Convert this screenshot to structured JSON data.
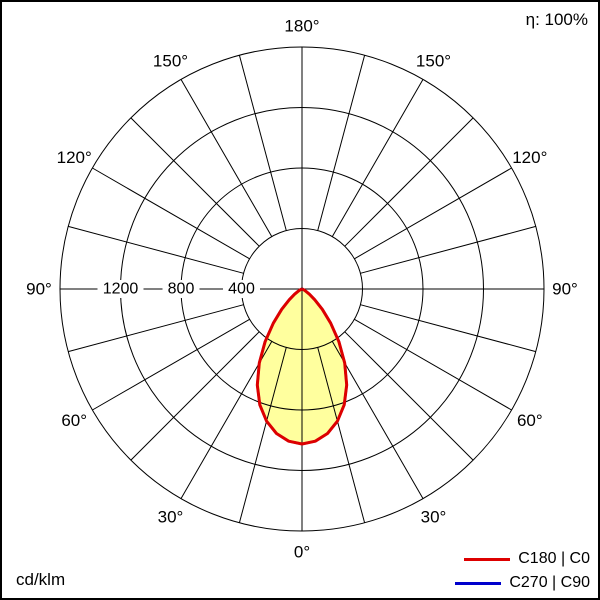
{
  "header": {
    "efficiency": "η: 100%"
  },
  "footer": {
    "unit_label": "cd/klm"
  },
  "legend": [
    {
      "label": "C180 | C0",
      "color": "#dd0000"
    },
    {
      "label": "C270 | C90",
      "color": "#0000cc"
    }
  ],
  "chart_data": {
    "type": "line",
    "subtype": "polar-luminous-intensity-distribution",
    "title": "",
    "units": "cd/klm",
    "efficiency": "η: 100%",
    "scale_max": 1600,
    "rings": [
      400,
      800,
      1200,
      1600
    ],
    "labeled_rings": [
      400,
      800,
      1200
    ],
    "spoke_step_deg": 15,
    "angle_label_step_deg": 30,
    "angle_labels": [
      "0°",
      "30°",
      "60°",
      "90°",
      "120°",
      "150°",
      "180°"
    ],
    "grid_color": "#000000",
    "fill_color": "#ffff9e",
    "legend_position": "bottom-right",
    "series": [
      {
        "name": "C270 | C90",
        "color": "#0000cc",
        "width": 2.5,
        "angles_deg": [
          0,
          5,
          10,
          15,
          20,
          25,
          30,
          35,
          40,
          45,
          50,
          55,
          60,
          65,
          70,
          75,
          80,
          85,
          90,
          105,
          120,
          135,
          150,
          165,
          180
        ],
        "values": [
          1025,
          1010,
          970,
          905,
          815,
          700,
          565,
          425,
          295,
          190,
          110,
          60,
          30,
          14,
          6,
          2,
          0,
          0,
          0,
          0,
          0,
          0,
          0,
          0,
          0
        ]
      },
      {
        "name": "C180 | C0",
        "color": "#dd0000",
        "width": 3,
        "fill": true,
        "angles_deg": [
          0,
          5,
          10,
          15,
          20,
          25,
          30,
          35,
          40,
          45,
          50,
          55,
          60,
          65,
          70,
          75,
          80,
          85,
          90,
          105,
          120,
          135,
          150,
          165,
          180
        ],
        "values": [
          1025,
          1010,
          970,
          905,
          815,
          700,
          565,
          425,
          295,
          190,
          110,
          60,
          30,
          14,
          6,
          2,
          0,
          0,
          0,
          0,
          0,
          0,
          0,
          0,
          0
        ]
      }
    ]
  }
}
